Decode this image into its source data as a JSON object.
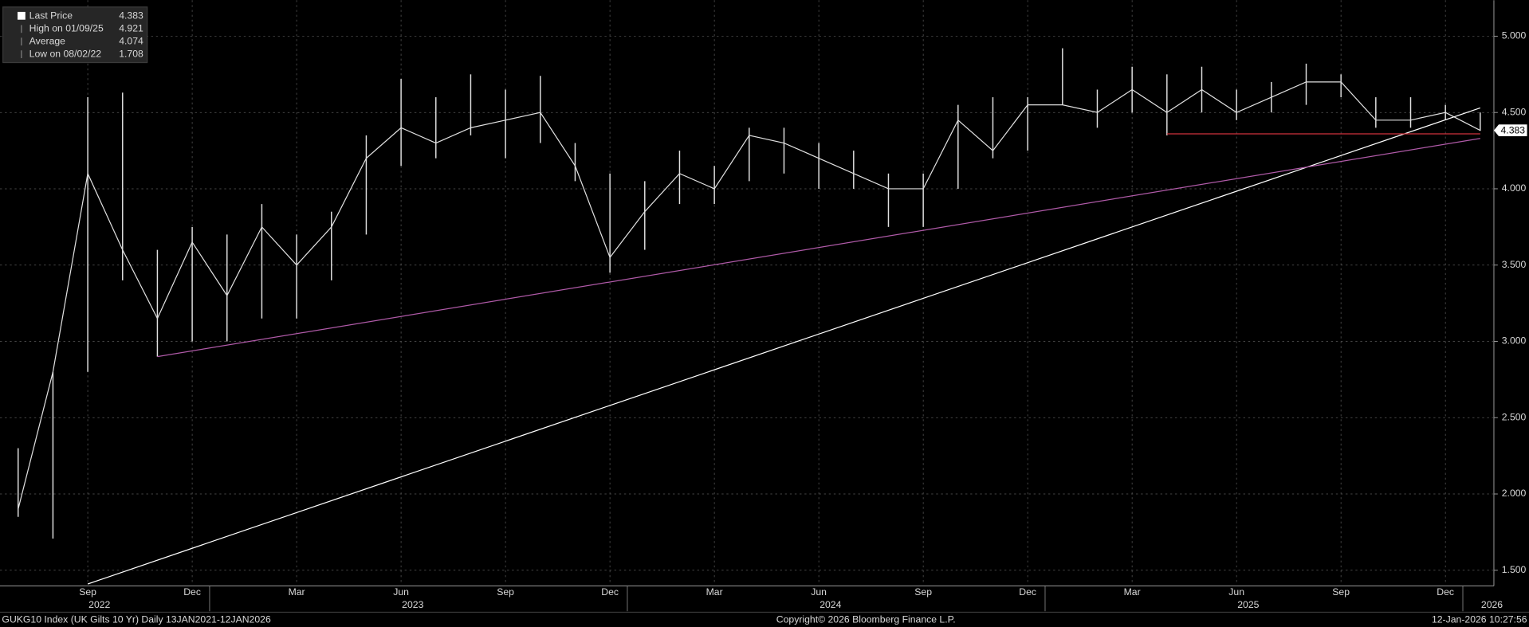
{
  "chart_data": {
    "type": "line",
    "x": [
      "2022-07",
      "2022-08",
      "2022-09",
      "2022-10",
      "2022-11",
      "2022-12",
      "2023-01",
      "2023-02",
      "2023-03",
      "2023-04",
      "2023-05",
      "2023-06",
      "2023-07",
      "2023-08",
      "2023-09",
      "2023-10",
      "2023-11",
      "2023-12",
      "2024-01",
      "2024-02",
      "2024-03",
      "2024-04",
      "2024-05",
      "2024-06",
      "2024-07",
      "2024-08",
      "2024-09",
      "2024-10",
      "2024-11",
      "2024-12",
      "2025-01",
      "2025-02",
      "2025-03",
      "2025-04",
      "2025-05",
      "2025-06",
      "2025-07",
      "2025-08",
      "2025-09",
      "2025-10",
      "2025-11",
      "2025-12",
      "2026-01"
    ],
    "series": [
      {
        "name": "Last Price",
        "color": "#e0e0e0",
        "values": [
          1.9,
          2.8,
          4.1,
          3.6,
          3.15,
          3.65,
          3.3,
          3.75,
          3.5,
          3.75,
          4.2,
          4.4,
          4.3,
          4.4,
          4.45,
          4.5,
          4.15,
          3.55,
          3.85,
          4.1,
          4.0,
          4.35,
          4.3,
          4.2,
          4.1,
          4.0,
          4.0,
          4.45,
          4.25,
          4.55,
          4.55,
          4.5,
          4.65,
          4.5,
          4.65,
          4.5,
          4.6,
          4.7,
          4.7,
          4.45,
          4.45,
          4.5,
          4.383
        ],
        "high": [
          2.3,
          2.8,
          4.6,
          4.63,
          3.6,
          3.75,
          3.7,
          3.9,
          3.7,
          3.85,
          4.35,
          4.72,
          4.6,
          4.75,
          4.65,
          4.74,
          4.3,
          4.1,
          4.05,
          4.25,
          4.15,
          4.4,
          4.4,
          4.3,
          4.25,
          4.1,
          4.1,
          4.55,
          4.6,
          4.6,
          4.921,
          4.65,
          4.8,
          4.75,
          4.8,
          4.65,
          4.7,
          4.82,
          4.75,
          4.6,
          4.6,
          4.55,
          4.5
        ],
        "low": [
          1.85,
          1.708,
          2.8,
          3.4,
          2.9,
          3.0,
          3.0,
          3.15,
          3.15,
          3.4,
          3.7,
          4.15,
          4.2,
          4.35,
          4.2,
          4.3,
          4.05,
          3.45,
          3.6,
          3.9,
          3.9,
          4.05,
          4.1,
          4.0,
          4.0,
          3.75,
          3.75,
          4.0,
          4.2,
          4.25,
          4.55,
          4.4,
          4.5,
          4.35,
          4.5,
          4.45,
          4.5,
          4.55,
          4.6,
          4.4,
          4.4,
          4.45,
          4.38
        ]
      }
    ],
    "stats": [
      {
        "label": "High on 01/09/25",
        "value": 4.921
      },
      {
        "label": "Average",
        "value": 4.074
      },
      {
        "label": "Low on 08/02/22",
        "value": 1.708
      }
    ],
    "ylim": [
      1.404,
      5.236
    ],
    "yticks": [
      {
        "value": 1.5,
        "label": "1.500"
      },
      {
        "value": 2,
        "label": "2.000"
      },
      {
        "value": 2.5,
        "label": "2.500"
      },
      {
        "value": 3,
        "label": "3.000"
      },
      {
        "value": 3.5,
        "label": "3.500"
      },
      {
        "value": 4,
        "label": "4.000"
      },
      {
        "value": 4.5,
        "label": "4.500"
      },
      {
        "value": 5,
        "label": "5.000"
      }
    ],
    "xticks": [
      {
        "value": "2022-09",
        "label": "Sep"
      },
      {
        "value": "2022-12",
        "label": "Dec"
      },
      {
        "value": "2023-03",
        "label": "Mar"
      },
      {
        "value": "2023-06",
        "label": "Jun"
      },
      {
        "value": "2023-09",
        "label": "Sep"
      },
      {
        "value": "2023-12",
        "label": "Dec"
      },
      {
        "value": "2024-03",
        "label": "Mar"
      },
      {
        "value": "2024-06",
        "label": "Jun"
      },
      {
        "value": "2024-09",
        "label": "Sep"
      },
      {
        "value": "2024-12",
        "label": "Dec"
      },
      {
        "value": "2025-03",
        "label": "Mar"
      },
      {
        "value": "2025-06",
        "label": "Jun"
      },
      {
        "value": "2025-09",
        "label": "Sep"
      },
      {
        "value": "2025-12",
        "label": "Dec"
      }
    ],
    "year_labels": [
      {
        "value": "2022-09",
        "label": "2022"
      },
      {
        "value": "2023-06",
        "label": "2023"
      },
      {
        "value": "2024-06",
        "label": "2024"
      },
      {
        "value": "2025-06",
        "label": "2025"
      },
      {
        "value": "2026-01",
        "label": "2026"
      }
    ],
    "trendlines": [
      {
        "color": "#ffffff",
        "start": {
          "x": "2022-09",
          "y": 1.41
        },
        "end": {
          "x": "2026-01",
          "y": 4.53
        }
      },
      {
        "color": "#b05aa8",
        "start": {
          "x": "2022-11",
          "y": 2.9
        },
        "end": {
          "x": "2026-01",
          "y": 4.33
        }
      },
      {
        "color": "#d0323c",
        "start": {
          "x": "2025-04",
          "y": 4.36
        },
        "end": {
          "x": "2026-01",
          "y": 4.36
        }
      }
    ],
    "grid": true,
    "legend": "top-left",
    "footer": {
      "left": "GUKG10 Index (UK Gilts 10 Yr) Daily 13JAN2021-12JAN2026",
      "center": "Copyright© 2026 Bloomberg Finance L.P.",
      "right": "12-Jan-2026 10:27:56"
    }
  }
}
